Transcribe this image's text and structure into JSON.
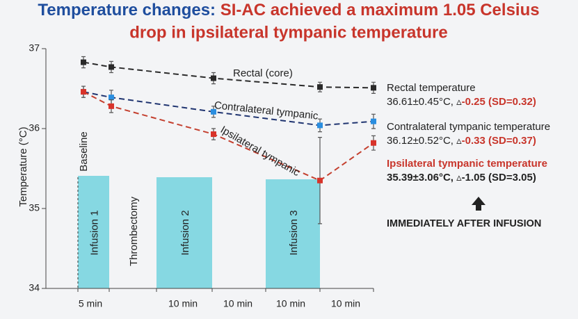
{
  "chart_data": {
    "type": "line",
    "title": {
      "part1": "Temperature changes: ",
      "part2": "SI-AC achieved a maximum 1.05 Celsius",
      "line2": "drop in ipsilateral tympanic temperature"
    },
    "y_label": "Temperature (°C)",
    "ylim": [
      34,
      37
    ],
    "yticks": [
      34,
      35,
      36,
      37
    ],
    "baseline_label": "Baseline",
    "bands": [
      {
        "label": "Infusion 1",
        "duration": "5 min",
        "shaded": true
      },
      {
        "label": "Thrombectomy",
        "duration": null,
        "shaded": false
      },
      {
        "label": "Infusion 2",
        "duration": "10 min",
        "shaded": true
      },
      {
        "label": null,
        "duration": "10 min",
        "shaded": false
      },
      {
        "label": "Infusion 3",
        "duration": "10 min",
        "shaded": true
      },
      {
        "label": null,
        "duration": "10 min",
        "shaded": false
      }
    ],
    "series": [
      {
        "name": "Rectal (core)",
        "color": "#2a2a2a",
        "line_color": "#2a2a2a",
        "values": [
          36.83,
          36.77,
          36.63,
          36.52,
          36.51
        ],
        "errors": [
          0.07,
          0.07,
          0.07,
          0.06,
          0.07
        ]
      },
      {
        "name": "Contralateral tympanic",
        "color": "#2a8ee0",
        "line_color": "#1f3470",
        "values": [
          36.46,
          36.39,
          36.21,
          36.04,
          36.09
        ],
        "errors": [
          0.07,
          0.09,
          0.07,
          0.08,
          0.09
        ]
      },
      {
        "name": "Ipsilateral tympanic",
        "color": "#d8332a",
        "line_color": "#c4402f",
        "values": [
          36.46,
          36.28,
          35.93,
          35.35,
          35.82
        ],
        "errors": [
          0.07,
          0.08,
          0.07,
          0.54,
          0.09
        ]
      }
    ],
    "annotations": [
      {
        "title": "Rectal temperature",
        "stat": "36.61±0.45°C, ▵",
        "change": "-0.25 (SD=0.32)"
      },
      {
        "title": "Contralateral tympanic temperature",
        "stat": "36.12±0.52°C, ▵",
        "change": "-0.33 (SD=0.37)"
      },
      {
        "title": "Ipsilateral tympanic temperature",
        "stat": "35.39±3.06°C, ▵",
        "change": "-1.05 (SD=3.05)"
      }
    ],
    "callout": "IMMEDIATELY AFTER INFUSION"
  }
}
